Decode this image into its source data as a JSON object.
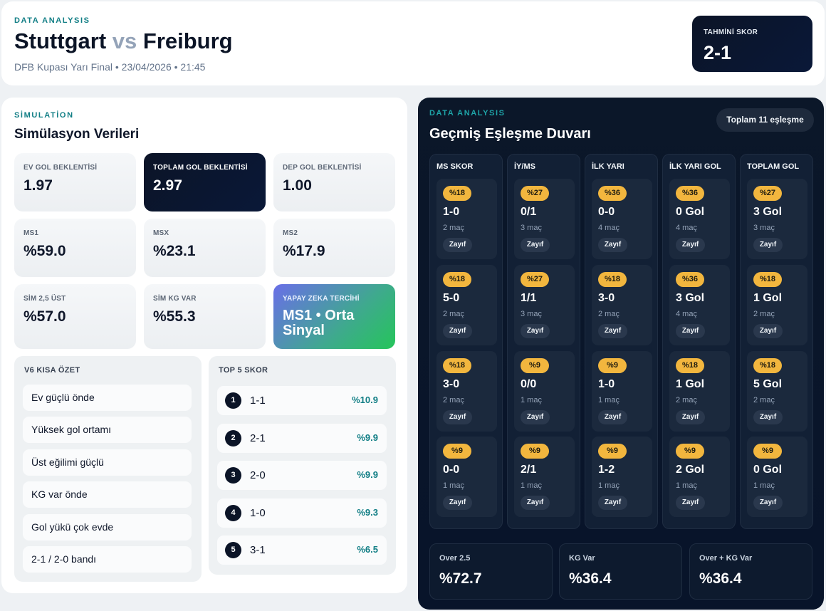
{
  "header": {
    "kicker": "DATA ANALYSIS",
    "home_team": "Stuttgart",
    "vs": "vs",
    "away_team": "Freiburg",
    "meta": "DFB Kupası Yarı Final • 23/04/2026 • 21:45",
    "prediction_label": "TAHMİNİ SKOR",
    "prediction_value": "2-1"
  },
  "simulation": {
    "kicker": "SİMULATİON",
    "title": "Simülasyon Verileri",
    "stats": [
      {
        "label": "EV GOL BEKLENTİSİ",
        "value": "1.97"
      },
      {
        "label": "TOPLAM GOL BEKLENTİSİ",
        "value": "2.97"
      },
      {
        "label": "DEP GOL BEKLENTİSİ",
        "value": "1.00"
      },
      {
        "label": "MS1",
        "value": "%59.0"
      },
      {
        "label": "MSX",
        "value": "%23.1"
      },
      {
        "label": "MS2",
        "value": "%17.9"
      },
      {
        "label": "SİM 2,5 ÜST",
        "value": "%57.0"
      },
      {
        "label": "SİM KG VAR",
        "value": "%55.3"
      },
      {
        "label": "YAPAY ZEKA TERCİHİ",
        "value": "MS1 • Orta Sinyal"
      }
    ],
    "summary": {
      "title": "V6 KISA ÖZET",
      "items": [
        "Ev güçlü önde",
        "Yüksek gol ortamı",
        "Üst eğilimi güçlü",
        "KG var önde",
        "Gol yükü çok evde",
        "2-1 / 2-0 bandı"
      ]
    },
    "top5": {
      "title": "TOP 5 SKOR",
      "items": [
        {
          "rank": "1",
          "score": "1-1",
          "pct": "%10.9"
        },
        {
          "rank": "2",
          "score": "2-1",
          "pct": "%9.9"
        },
        {
          "rank": "3",
          "score": "2-0",
          "pct": "%9.9"
        },
        {
          "rank": "4",
          "score": "1-0",
          "pct": "%9.3"
        },
        {
          "rank": "5",
          "score": "3-1",
          "pct": "%6.5"
        }
      ]
    }
  },
  "history": {
    "kicker": "DATA ANALYSIS",
    "title": "Geçmiş Eşleşme Duvarı",
    "total_label": "Toplam 11 eşleşme",
    "columns": [
      {
        "head": "MS SKOR",
        "cells": [
          {
            "pct": "%18",
            "score": "1-0",
            "count": "2 maç",
            "tag": "Zayıf"
          },
          {
            "pct": "%18",
            "score": "5-0",
            "count": "2 maç",
            "tag": "Zayıf"
          },
          {
            "pct": "%18",
            "score": "3-0",
            "count": "2 maç",
            "tag": "Zayıf"
          },
          {
            "pct": "%9",
            "score": "0-0",
            "count": "1 maç",
            "tag": "Zayıf"
          }
        ]
      },
      {
        "head": "İY/MS",
        "cells": [
          {
            "pct": "%27",
            "score": "0/1",
            "count": "3 maç",
            "tag": "Zayıf"
          },
          {
            "pct": "%27",
            "score": "1/1",
            "count": "3 maç",
            "tag": "Zayıf"
          },
          {
            "pct": "%9",
            "score": "0/0",
            "count": "1 maç",
            "tag": "Zayıf"
          },
          {
            "pct": "%9",
            "score": "2/1",
            "count": "1 maç",
            "tag": "Zayıf"
          }
        ]
      },
      {
        "head": "İLK YARI",
        "cells": [
          {
            "pct": "%36",
            "score": "0-0",
            "count": "4 maç",
            "tag": "Zayıf"
          },
          {
            "pct": "%18",
            "score": "3-0",
            "count": "2 maç",
            "tag": "Zayıf"
          },
          {
            "pct": "%9",
            "score": "1-0",
            "count": "1 maç",
            "tag": "Zayıf"
          },
          {
            "pct": "%9",
            "score": "1-2",
            "count": "1 maç",
            "tag": "Zayıf"
          }
        ]
      },
      {
        "head": "İLK YARI GOL",
        "cells": [
          {
            "pct": "%36",
            "score": "0 Gol",
            "count": "4 maç",
            "tag": "Zayıf"
          },
          {
            "pct": "%36",
            "score": "3 Gol",
            "count": "4 maç",
            "tag": "Zayıf"
          },
          {
            "pct": "%18",
            "score": "1 Gol",
            "count": "2 maç",
            "tag": "Zayıf"
          },
          {
            "pct": "%9",
            "score": "2 Gol",
            "count": "1 maç",
            "tag": "Zayıf"
          }
        ]
      },
      {
        "head": "TOPLAM GOL",
        "cells": [
          {
            "pct": "%27",
            "score": "3 Gol",
            "count": "3 maç",
            "tag": "Zayıf"
          },
          {
            "pct": "%18",
            "score": "1 Gol",
            "count": "2 maç",
            "tag": "Zayıf"
          },
          {
            "pct": "%18",
            "score": "5 Gol",
            "count": "2 maç",
            "tag": "Zayıf"
          },
          {
            "pct": "%9",
            "score": "0 Gol",
            "count": "1 maç",
            "tag": "Zayıf"
          }
        ]
      }
    ],
    "footer": [
      {
        "label": "Over 2.5",
        "value": "%72.7"
      },
      {
        "label": "KG Var",
        "value": "%36.4"
      },
      {
        "label": "Over + KG Var",
        "value": "%36.4"
      }
    ]
  }
}
